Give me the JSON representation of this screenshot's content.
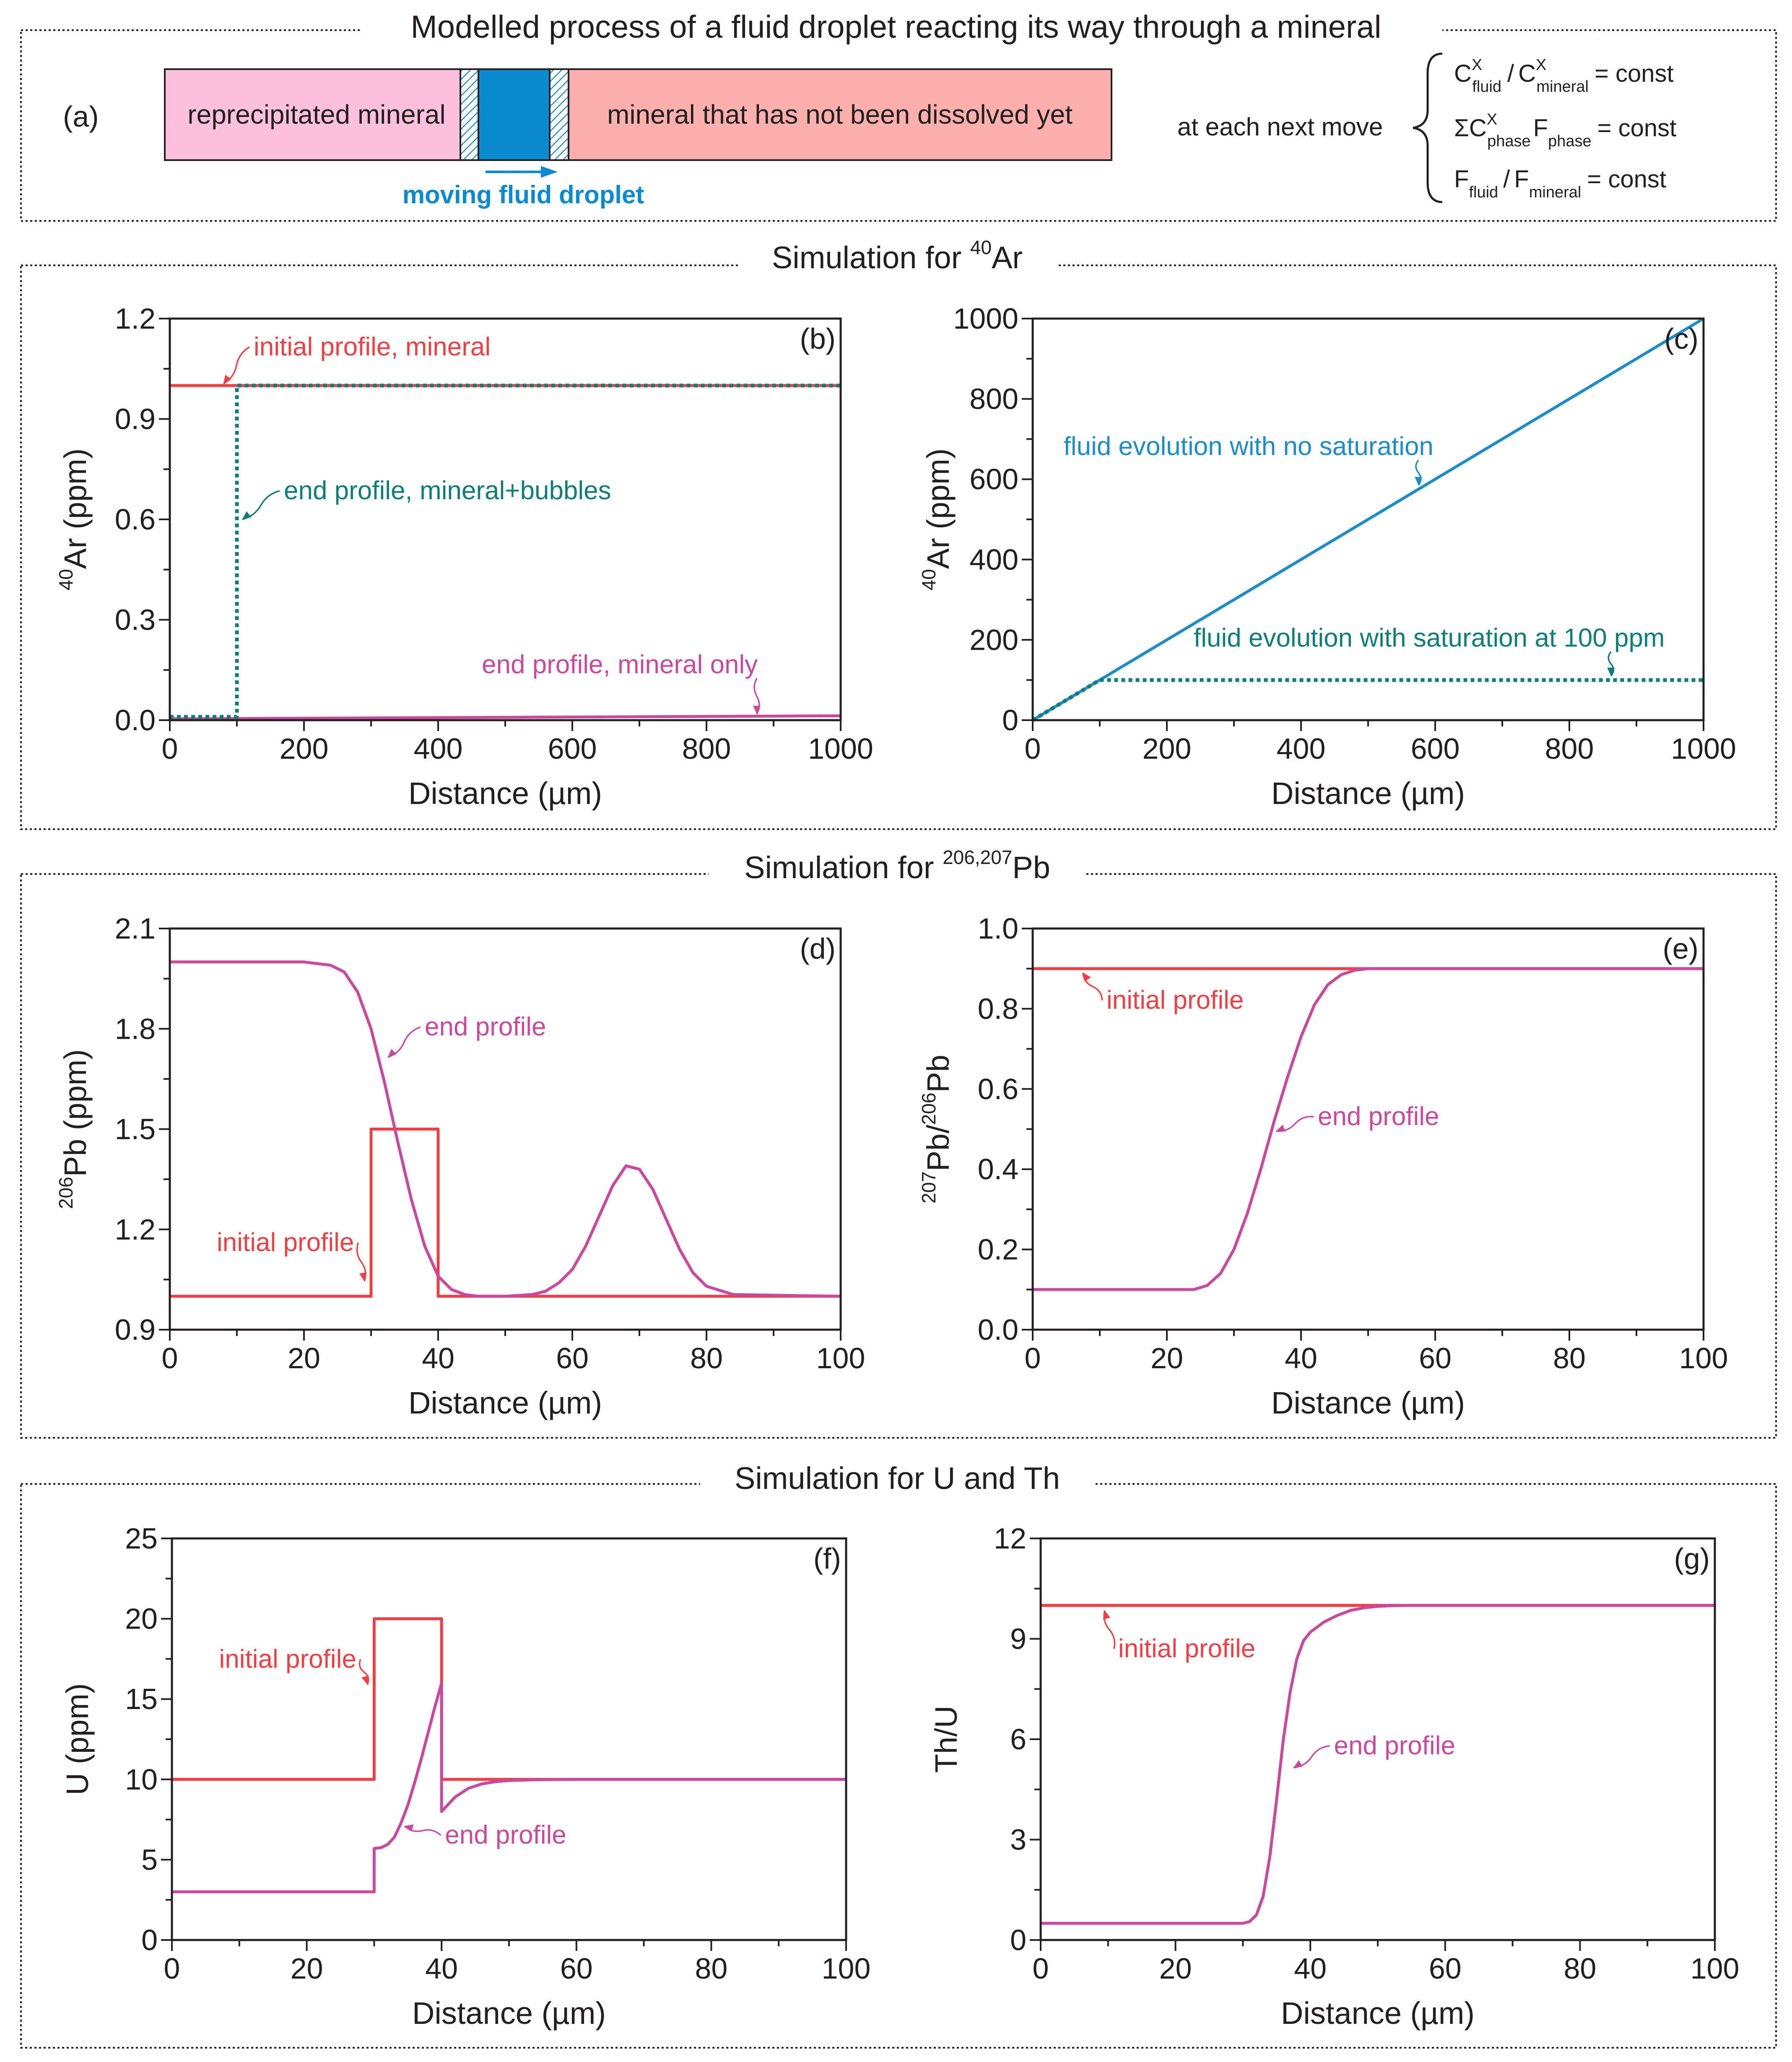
{
  "colors": {
    "red": "#ee3f45",
    "magenta": "#c9499e",
    "blue": "#1f8cca",
    "teal": "#0f7d78",
    "pink": "#fbc1dc",
    "salmon": "#fbb0ae",
    "droplet": "#0b8ad0",
    "text": "#231f20"
  },
  "panel_a": {
    "title": "Modelled process of a fluid droplet reacting its way through a mineral",
    "label": "(a)",
    "left_text": "reprecipitated mineral",
    "right_text": "mineral that has not been dissolved yet",
    "droplet_text": "moving fluid droplet",
    "move_text": "at each next move",
    "eq1": {
      "c": "C",
      "x": "X",
      "fluid": "fluid",
      "slash": "/",
      "mineral": "mineral",
      "rhs": "= const"
    },
    "eq2": {
      "sigma": "ΣC",
      "x": "X",
      "phase": "phase",
      "f": "F",
      "rhs": "= const"
    },
    "eq3": {
      "f": "F",
      "fluid": "fluid",
      "slash": "/",
      "mineral": "mineral",
      "rhs": "= const"
    }
  },
  "sections": {
    "ar": {
      "prefix": "Simulation for ",
      "sup": "40",
      "suffix": "Ar"
    },
    "pb": {
      "prefix": "Simulation for ",
      "sup": "206,207",
      "suffix": "Pb"
    },
    "uth": {
      "prefix": "Simulation for U and Th",
      "sup": "",
      "suffix": ""
    }
  },
  "chart_data": [
    {
      "id": "b",
      "type": "line",
      "label": "(b)",
      "xlabel": "Distance (µm)",
      "ylabel": {
        "sup": "40",
        "main": "Ar (ppm)"
      },
      "xlim": [
        0,
        1000
      ],
      "ylim": [
        0,
        1.2
      ],
      "xticks": [
        "0",
        "200",
        "400",
        "600",
        "800",
        "1000"
      ],
      "yticks": [
        "0.0",
        "0.3",
        "0.6",
        "0.9",
        "1.2"
      ],
      "series": [
        {
          "name": "initial profile, mineral",
          "color": "red",
          "dashed": false,
          "x": [
            0,
            1000
          ],
          "y": [
            1.0,
            1.0
          ]
        },
        {
          "name": "end profile, mineral only",
          "color": "magenta",
          "dashed": false,
          "x": [
            0,
            1000
          ],
          "y": [
            0.004,
            0.013
          ]
        },
        {
          "name": "end profile, mineral+bubbles",
          "color": "teal",
          "dashed": true,
          "x": [
            0,
            100,
            100,
            1000
          ],
          "y": [
            0.01,
            0.01,
            1.0,
            1.0
          ]
        }
      ],
      "annotations": [
        {
          "text": "initial profile, mineral",
          "color": "red",
          "x": 125,
          "y": 1.09,
          "ax": 80,
          "ay": 1.005
        },
        {
          "text": "end profile, mineral+bubbles",
          "color": "teal",
          "x": 170,
          "y": 0.66,
          "ax": 108,
          "ay": 0.6
        },
        {
          "text": "end profile, mineral only",
          "color": "magenta",
          "x": 465,
          "y": 0.14,
          "ax": 875,
          "ay": 0.018
        }
      ]
    },
    {
      "id": "c",
      "type": "line",
      "label": "(c)",
      "xlabel": "Distance (µm)",
      "ylabel": {
        "sup": "40",
        "main": "Ar (ppm)"
      },
      "xlim": [
        0,
        1000
      ],
      "ylim": [
        0,
        1000
      ],
      "xticks": [
        "0",
        "200",
        "400",
        "600",
        "800",
        "1000"
      ],
      "yticks": [
        "0",
        "200",
        "400",
        "600",
        "800",
        "1000"
      ],
      "series": [
        {
          "name": "fluid evolution with no saturation",
          "color": "blue",
          "dashed": false,
          "x": [
            0,
            1000
          ],
          "y": [
            0,
            1000
          ]
        },
        {
          "name": "fluid evolution with saturation at 100 ppm",
          "color": "teal",
          "dashed": true,
          "x": [
            0,
            100,
            1000
          ],
          "y": [
            0,
            100,
            100
          ]
        }
      ],
      "annotations": [
        {
          "text": "fluid evolution with no saturation",
          "color": "blue",
          "x": 46,
          "y": 660,
          "ax": 575,
          "ay": 585
        },
        {
          "text": "fluid evolution with saturation at 100 ppm",
          "color": "teal",
          "x": 240,
          "y": 183,
          "ax": 862,
          "ay": 110
        }
      ]
    },
    {
      "id": "d",
      "type": "line",
      "label": "(d)",
      "xlabel": "Distance (µm)",
      "ylabel": {
        "sup": "206",
        "main": "Pb (ppm)"
      },
      "xlim": [
        0,
        100
      ],
      "ylim": [
        0.9,
        2.1
      ],
      "xticks": [
        "0",
        "20",
        "40",
        "60",
        "80",
        "100"
      ],
      "yticks": [
        "0.9",
        "1.2",
        "1.5",
        "1.8",
        "2.1"
      ],
      "series": [
        {
          "name": "initial profile",
          "color": "red",
          "dashed": false,
          "x": [
            0,
            30,
            30,
            40,
            40,
            100
          ],
          "y": [
            1.0,
            1.0,
            1.5,
            1.5,
            1.0,
            1.0
          ]
        },
        {
          "name": "end profile",
          "color": "magenta",
          "dashed": false,
          "x": [
            0,
            20,
            24,
            26,
            28,
            30,
            32,
            34,
            36,
            38,
            40,
            42,
            44,
            46,
            50,
            54,
            56,
            58,
            60,
            62,
            64,
            66,
            68,
            70,
            72,
            74,
            76,
            78,
            80,
            84,
            100
          ],
          "y": [
            2.0,
            2.0,
            1.99,
            1.97,
            1.91,
            1.8,
            1.64,
            1.46,
            1.29,
            1.15,
            1.06,
            1.02,
            1.005,
            1.0,
            1.0,
            1.005,
            1.015,
            1.04,
            1.08,
            1.15,
            1.24,
            1.33,
            1.39,
            1.38,
            1.32,
            1.23,
            1.14,
            1.07,
            1.03,
            1.005,
            1.0
          ]
        }
      ],
      "annotations": [
        {
          "text": "end profile",
          "color": "magenta",
          "x": 38,
          "y": 1.78,
          "ax": 32.5,
          "ay": 1.715
        },
        {
          "text": "initial profile",
          "color": "red",
          "x": 7,
          "y": 1.135,
          "ax": 29,
          "ay": 1.045
        }
      ]
    },
    {
      "id": "e",
      "type": "line",
      "label": "(e)",
      "xlabel": "Distance (µm)",
      "ylabel": {
        "sup1": "207",
        "main1": "Pb/",
        "sup2": "206",
        "main2": "Pb"
      },
      "xlim": [
        0,
        100
      ],
      "ylim": [
        0,
        1.0
      ],
      "xticks": [
        "0",
        "20",
        "40",
        "60",
        "80",
        "100"
      ],
      "yticks": [
        "0.0",
        "0.2",
        "0.4",
        "0.6",
        "0.8",
        "1.0"
      ],
      "series": [
        {
          "name": "initial profile",
          "color": "red",
          "dashed": false,
          "x": [
            0,
            100
          ],
          "y": [
            0.9,
            0.9
          ]
        },
        {
          "name": "end profile",
          "color": "magenta",
          "dashed": false,
          "x": [
            0,
            24,
            26,
            28,
            30,
            32,
            34,
            36,
            38,
            40,
            42,
            44,
            46,
            48,
            50,
            100
          ],
          "y": [
            0.1,
            0.1,
            0.11,
            0.14,
            0.2,
            0.29,
            0.4,
            0.52,
            0.63,
            0.73,
            0.81,
            0.86,
            0.885,
            0.896,
            0.9,
            0.9
          ]
        }
      ],
      "annotations": [
        {
          "text": "initial profile",
          "color": "red",
          "x": 11,
          "y": 0.8,
          "ax": 7.5,
          "ay": 0.89
        },
        {
          "text": "end profile",
          "color": "magenta",
          "x": 42.5,
          "y": 0.51,
          "ax": 36.3,
          "ay": 0.495
        }
      ]
    },
    {
      "id": "f",
      "type": "line",
      "label": "(f)",
      "xlabel": "Distance (µm)",
      "ylabel": {
        "sup": "",
        "main": "U (ppm)"
      },
      "xlim": [
        0,
        100
      ],
      "ylim": [
        0,
        25
      ],
      "xticks": [
        "0",
        "20",
        "40",
        "60",
        "80",
        "100"
      ],
      "yticks": [
        "0",
        "5",
        "10",
        "15",
        "20",
        "25"
      ],
      "series": [
        {
          "name": "initial profile",
          "color": "red",
          "dashed": false,
          "x": [
            0,
            30,
            30,
            40,
            40,
            100
          ],
          "y": [
            10,
            10,
            20,
            20,
            10,
            10
          ]
        },
        {
          "name": "end profile",
          "color": "magenta",
          "dashed": false,
          "x": [
            0,
            30,
            30,
            31,
            32,
            33,
            34,
            35,
            36,
            37,
            38,
            39,
            40,
            40,
            42,
            44,
            46,
            48,
            50,
            54,
            60,
            100
          ],
          "y": [
            3,
            3,
            5.7,
            5.75,
            5.95,
            6.4,
            7.3,
            8.4,
            9.8,
            11.3,
            12.9,
            14.5,
            16.0,
            8.0,
            8.9,
            9.45,
            9.72,
            9.86,
            9.93,
            9.98,
            10,
            10
          ]
        }
      ],
      "annotations": [
        {
          "text": "initial profile",
          "color": "red",
          "x": 7,
          "y": 16.95,
          "ax": 29,
          "ay": 15.9
        },
        {
          "text": "end profile",
          "color": "magenta",
          "x": 40.5,
          "y": 6.0,
          "ax": 34.5,
          "ay": 7.1
        }
      ]
    },
    {
      "id": "g",
      "type": "line",
      "label": "(g)",
      "xlabel": "Distance (µm)",
      "ylabel": {
        "sup": "",
        "main": "Th/U"
      },
      "xlim": [
        0,
        100
      ],
      "ylim": [
        0,
        12
      ],
      "xticks": [
        "0",
        "20",
        "40",
        "60",
        "80",
        "100"
      ],
      "yticks": [
        "0",
        "3",
        "6",
        "9",
        "12"
      ],
      "series": [
        {
          "name": "initial profile",
          "color": "red",
          "dashed": false,
          "x": [
            0,
            100
          ],
          "y": [
            10,
            10
          ]
        },
        {
          "name": "end profile",
          "color": "magenta",
          "dashed": false,
          "x": [
            0,
            30,
            31,
            32,
            33,
            34,
            35,
            36,
            37,
            38,
            39,
            40,
            42,
            44,
            46,
            48,
            50,
            52,
            55,
            100
          ],
          "y": [
            0.5,
            0.5,
            0.55,
            0.75,
            1.3,
            2.5,
            4.2,
            6.0,
            7.4,
            8.4,
            8.95,
            9.2,
            9.5,
            9.7,
            9.85,
            9.93,
            9.97,
            9.99,
            10,
            10
          ]
        }
      ],
      "annotations": [
        {
          "text": "initial profile",
          "color": "red",
          "x": 11.5,
          "y": 8.45,
          "ax": 9.5,
          "ay": 9.85
        },
        {
          "text": "end profile",
          "color": "magenta",
          "x": 43.5,
          "y": 5.55,
          "ax": 37.5,
          "ay": 5.15
        }
      ]
    }
  ]
}
